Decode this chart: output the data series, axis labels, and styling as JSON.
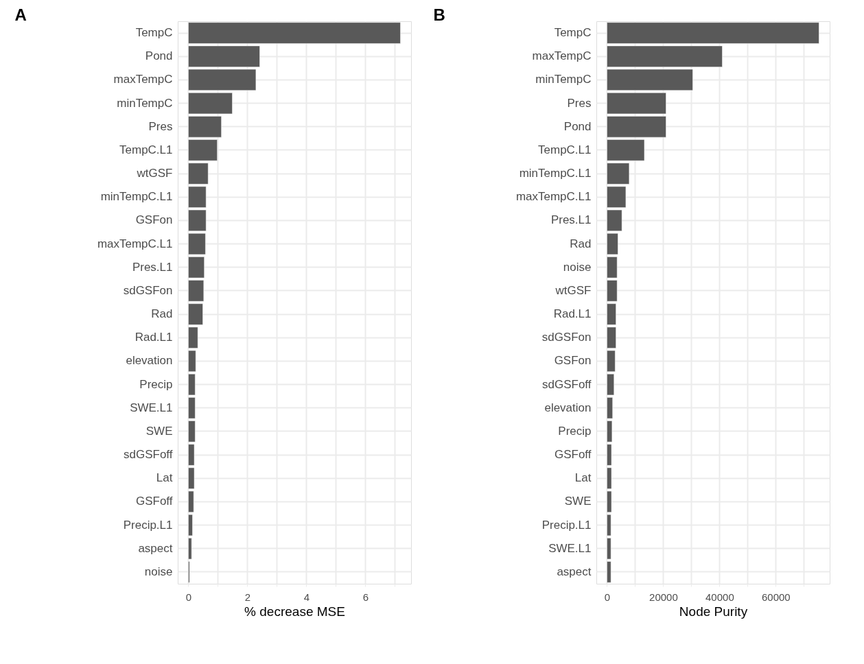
{
  "chart_data": [
    {
      "type": "bar",
      "orientation": "horizontal",
      "title": "A",
      "xlabel": "% decrease MSE",
      "color": "#595959",
      "grid": true,
      "categories": [
        "TempC",
        "Pond",
        "maxTempC",
        "minTempC",
        "Pres",
        "TempC.L1",
        "wtGSF",
        "minTempC.L1",
        "GSFon",
        "maxTempC.L1",
        "Pres.L1",
        "sdGSFon",
        "Rad",
        "Rad.L1",
        "elevation",
        "Precip",
        "SWE.L1",
        "SWE",
        "sdGSFoff",
        "Lat",
        "GSFoff",
        "Precip.L1",
        "aspect",
        "noise"
      ],
      "values": [
        7.19,
        2.42,
        2.29,
        1.49,
        1.12,
        0.98,
        0.67,
        0.6,
        0.6,
        0.58,
        0.54,
        0.52,
        0.49,
        0.32,
        0.25,
        0.23,
        0.23,
        0.23,
        0.2,
        0.2,
        0.18,
        0.14,
        0.11,
        0.04
      ],
      "xlim": [
        -0.36,
        7.55
      ],
      "xticks": [
        0,
        {
          "value": 1,
          "label": null
        },
        2,
        {
          "value": 3,
          "label": null
        },
        4,
        {
          "value": 5,
          "label": null
        },
        6,
        {
          "value": 7,
          "label": null
        }
      ]
    },
    {
      "type": "bar",
      "orientation": "horizontal",
      "title": "B",
      "xlabel": "Node Purity",
      "color": "#595959",
      "grid": true,
      "categories": [
        "TempC",
        "maxTempC",
        "minTempC",
        "Pres",
        "Pond",
        "TempC.L1",
        "minTempC.L1",
        "maxTempC.L1",
        "Pres.L1",
        "Rad",
        "noise",
        "wtGSF",
        "Rad.L1",
        "sdGSFon",
        "GSFon",
        "sdGSFoff",
        "elevation",
        "Precip",
        "GSFoff",
        "Lat",
        "SWE",
        "Precip.L1",
        "SWE.L1",
        "aspect"
      ],
      "values": [
        75400,
        41000,
        30500,
        21000,
        21000,
        13300,
        7900,
        6700,
        5300,
        3900,
        3600,
        3600,
        3200,
        3200,
        2900,
        2500,
        2000,
        1800,
        1600,
        1600,
        1600,
        1400,
        1400,
        1400
      ],
      "xlim": [
        -3780,
        79200
      ],
      "xticks": [
        0,
        {
          "value": 10000,
          "label": null
        },
        20000,
        {
          "value": 30000,
          "label": null
        },
        40000,
        {
          "value": 50000,
          "label": null
        },
        60000,
        {
          "value": 70000,
          "label": null
        }
      ]
    }
  ]
}
